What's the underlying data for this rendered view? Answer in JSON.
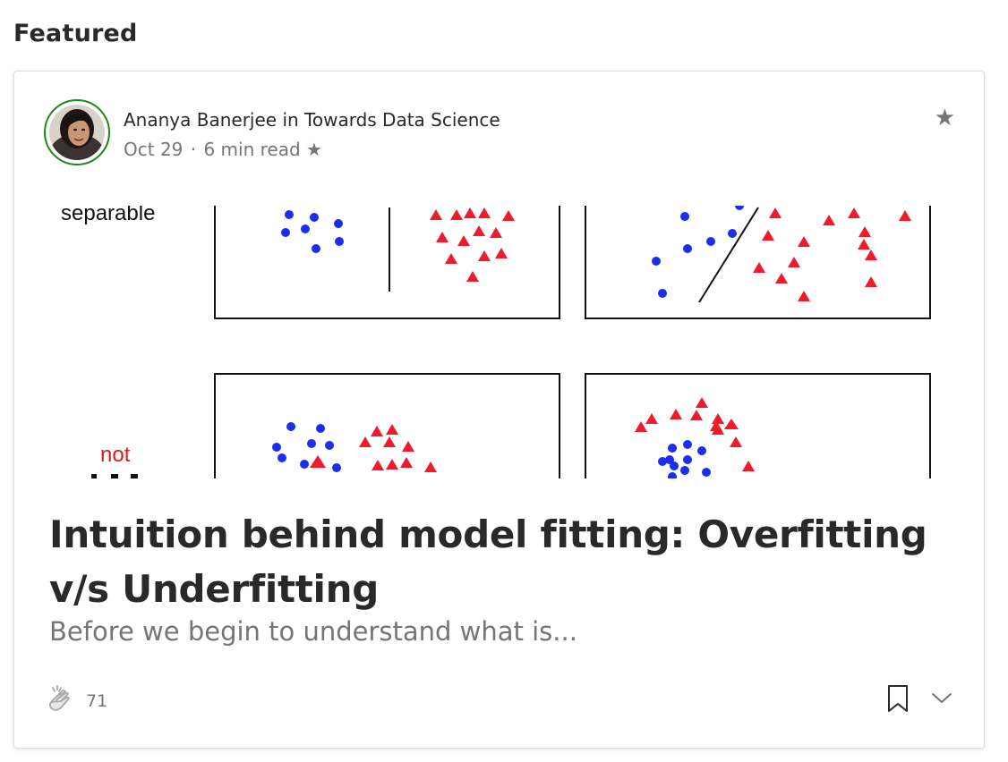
{
  "section": {
    "title": "Featured"
  },
  "post": {
    "author": "Ananya Banerjee",
    "connector": "in",
    "publication": "Towards Data Science",
    "date": "Oct 29",
    "separator": "·",
    "read_time": "6 min read",
    "member_star": "★",
    "title": "Intuition behind model fitting: Overfitting v/s Underfitting",
    "subtitle": "Before we begin to understand what is...",
    "claps": "71",
    "star_icon": "star-icon"
  },
  "figure": {
    "label_top": "separable",
    "label_bottom": "not",
    "colors": {
      "circle": "#1b2ef0",
      "triangle": "#f01a2a",
      "label_not": "#e01a1a"
    }
  },
  "icons": {
    "clap": "clap-icon",
    "bookmark": "bookmark-icon",
    "more": "chevron-down-icon",
    "star": "star-icon"
  }
}
